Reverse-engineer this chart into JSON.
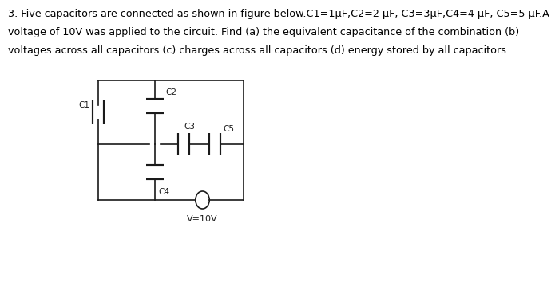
{
  "title_text": "3. Five capacitors are connected as shown in figure below.C1=1μF,C2=2 μF, C3=3μF,C4=4 μF, C5=5 μF.A",
  "line2_text": "voltage of 10V was applied to the circuit. Find (a) the equivalent capacitance of the combination (b)",
  "line3_text": "voltages across all capacitors (c) charges across all capacitors (d) energy stored by all capacitors.",
  "bg_color": "#ffffff",
  "text_color": "#000000",
  "circuit_color": "#1a1a1a",
  "font_size": 9.2,
  "label_font_size": 7.5,
  "voltage_label": "V=10V"
}
